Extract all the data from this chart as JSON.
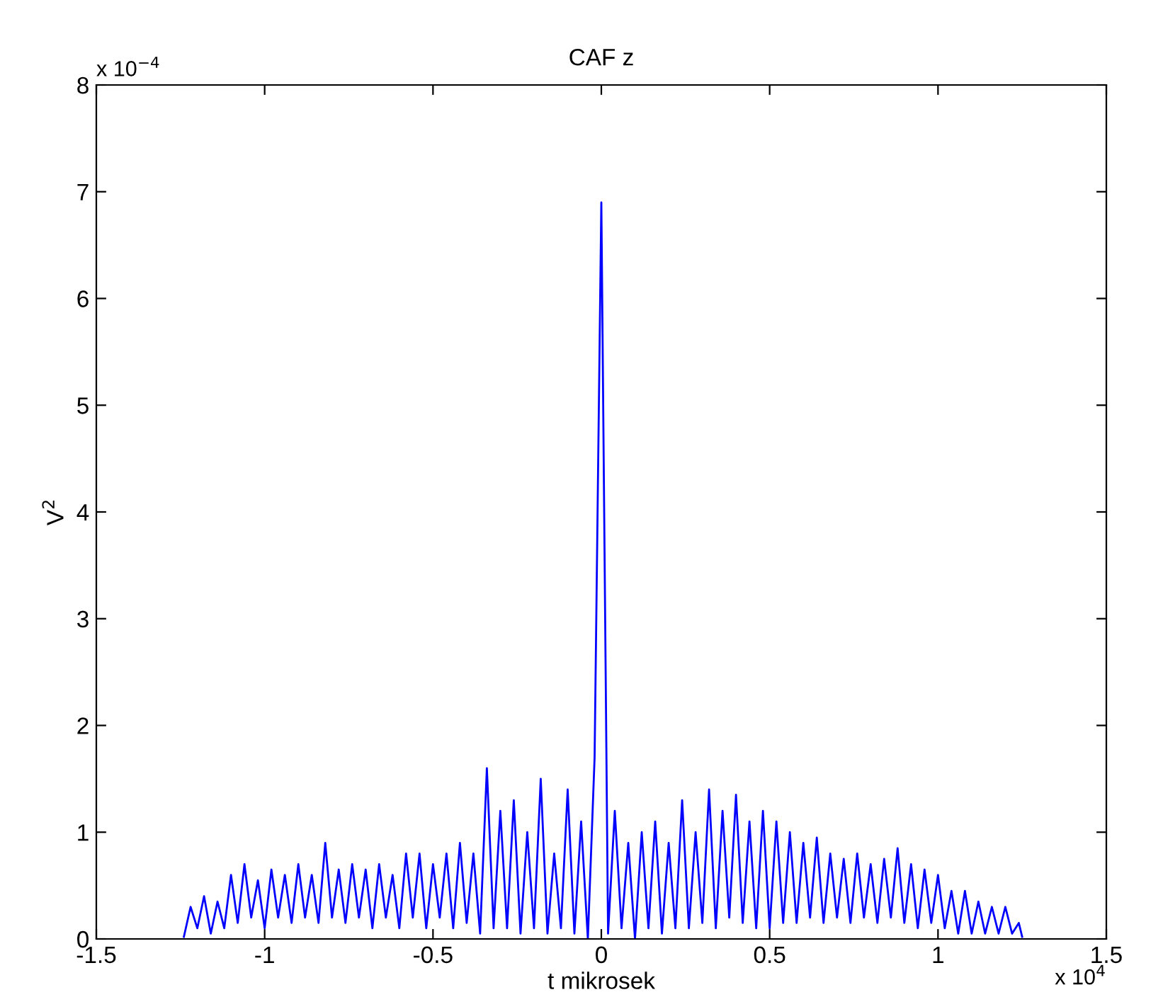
{
  "chart_data": {
    "type": "line",
    "title": "CAF z",
    "xlabel": "t mikrosek",
    "ylabel": "V$^{2}$",
    "annotations": [
      "x 10$^{−4}$",
      "x 10$^{4}$"
    ],
    "xlim": [
      -1.5,
      1.5
    ],
    "xticks": [
      -1.5,
      -1,
      -0.5,
      0,
      0.5,
      1,
      1.5
    ],
    "ylim": [
      0,
      8
    ],
    "yticks": [
      0,
      1,
      2,
      3,
      4,
      5,
      6,
      7,
      8
    ],
    "grid": false,
    "legend": false,
    "line_style": "solid",
    "marker": "none",
    "series": [
      {
        "color": "#0000ff",
        "x": [
          -1.24,
          -1.22,
          -1.2,
          -1.18,
          -1.16,
          -1.14,
          -1.12,
          -1.1,
          -1.08,
          -1.06,
          -1.04,
          -1.02,
          -1.0,
          -0.98,
          -0.96,
          -0.94,
          -0.92,
          -0.9,
          -0.88,
          -0.86,
          -0.84,
          -0.82,
          -0.8,
          -0.78,
          -0.76,
          -0.74,
          -0.72,
          -0.7,
          -0.68,
          -0.66,
          -0.64,
          -0.62,
          -0.6,
          -0.58,
          -0.56,
          -0.54,
          -0.52,
          -0.5,
          -0.48,
          -0.46,
          -0.44,
          -0.42,
          -0.4,
          -0.38,
          -0.36,
          -0.34,
          -0.32,
          -0.3,
          -0.28,
          -0.26,
          -0.24,
          -0.22,
          -0.2,
          -0.18,
          -0.16,
          -0.14,
          -0.12,
          -0.1,
          -0.08,
          -0.06,
          -0.04,
          -0.02,
          0.0,
          0.02,
          0.04,
          0.06,
          0.08,
          0.1,
          0.12,
          0.14,
          0.16,
          0.18,
          0.2,
          0.22,
          0.24,
          0.26,
          0.28,
          0.3,
          0.32,
          0.34,
          0.36,
          0.38,
          0.4,
          0.42,
          0.44,
          0.46,
          0.48,
          0.5,
          0.52,
          0.54,
          0.56,
          0.58,
          0.6,
          0.62,
          0.64,
          0.66,
          0.68,
          0.7,
          0.72,
          0.74,
          0.76,
          0.78,
          0.8,
          0.82,
          0.84,
          0.86,
          0.88,
          0.9,
          0.92,
          0.94,
          0.96,
          0.98,
          1.0,
          1.02,
          1.04,
          1.06,
          1.08,
          1.1,
          1.12,
          1.14,
          1.16,
          1.18,
          1.2,
          1.22,
          1.24,
          1.25
        ],
        "values": [
          0.02,
          0.3,
          0.1,
          0.4,
          0.05,
          0.35,
          0.1,
          0.6,
          0.15,
          0.7,
          0.2,
          0.55,
          0.1,
          0.65,
          0.2,
          0.6,
          0.15,
          0.7,
          0.2,
          0.6,
          0.15,
          0.9,
          0.2,
          0.65,
          0.15,
          0.7,
          0.2,
          0.65,
          0.1,
          0.7,
          0.2,
          0.6,
          0.1,
          0.8,
          0.2,
          0.8,
          0.1,
          0.7,
          0.2,
          0.8,
          0.1,
          0.9,
          0.15,
          0.8,
          0.05,
          1.6,
          0.1,
          1.2,
          0.1,
          1.3,
          0.05,
          1.0,
          0.1,
          1.5,
          0.05,
          0.8,
          0.1,
          1.4,
          0.05,
          1.1,
          0.0,
          1.7,
          6.9,
          0.05,
          1.2,
          0.1,
          0.9,
          0.0,
          1.0,
          0.1,
          1.1,
          0.05,
          0.9,
          0.1,
          1.3,
          0.1,
          1.0,
          0.15,
          1.4,
          0.1,
          1.2,
          0.2,
          1.35,
          0.15,
          1.1,
          0.1,
          1.2,
          0.1,
          1.1,
          0.15,
          1.0,
          0.15,
          0.9,
          0.2,
          0.95,
          0.15,
          0.8,
          0.2,
          0.75,
          0.15,
          0.8,
          0.2,
          0.7,
          0.15,
          0.75,
          0.2,
          0.85,
          0.15,
          0.7,
          0.1,
          0.65,
          0.15,
          0.6,
          0.1,
          0.45,
          0.05,
          0.45,
          0.05,
          0.35,
          0.05,
          0.3,
          0.05,
          0.3,
          0.05,
          0.15,
          0.02
        ]
      }
    ]
  }
}
